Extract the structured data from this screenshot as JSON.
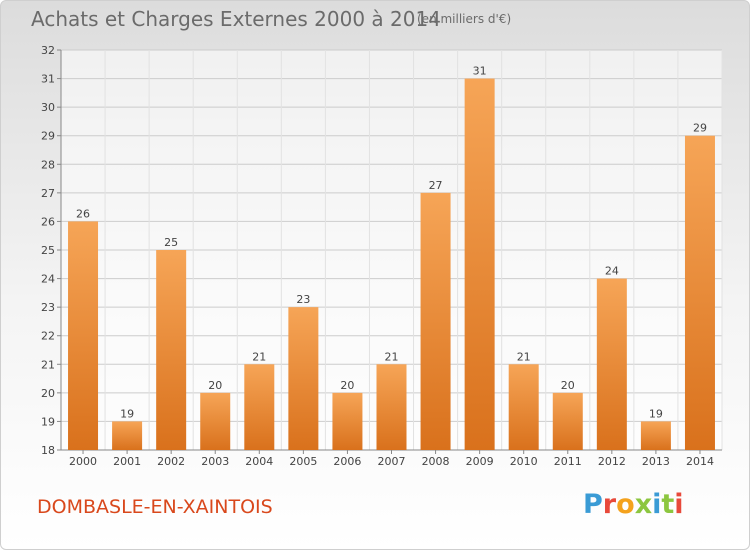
{
  "title": "Achats et Charges Externes 2000 à 2014",
  "unit": "(en milliers d'€)",
  "location": "DOMBASLE-EN-XAINTOIS",
  "brand": {
    "text": "Proxiti",
    "colors": [
      "#3a9bd5",
      "#8cc63f",
      "#f4a21d",
      "#e8493a"
    ]
  },
  "chart_data": {
    "type": "bar",
    "title": "Achats et Charges Externes 2000 à 2014",
    "subtitle": "(en milliers d'€)",
    "categories": [
      "2000",
      "2001",
      "2002",
      "2003",
      "2004",
      "2005",
      "2006",
      "2007",
      "2008",
      "2009",
      "2010",
      "2011",
      "2012",
      "2013",
      "2014"
    ],
    "values": [
      26,
      19,
      25,
      20,
      21,
      23,
      20,
      21,
      27,
      31,
      21,
      20,
      24,
      19,
      29
    ],
    "ylim": [
      18,
      32
    ],
    "yticks": [
      18,
      19,
      20,
      21,
      22,
      23,
      24,
      25,
      26,
      27,
      28,
      29,
      30,
      31,
      32
    ],
    "grid": true,
    "bar_color_top": "#f6a557",
    "bar_color_bottom": "#d9711c",
    "grid_color": "#cccccc"
  }
}
